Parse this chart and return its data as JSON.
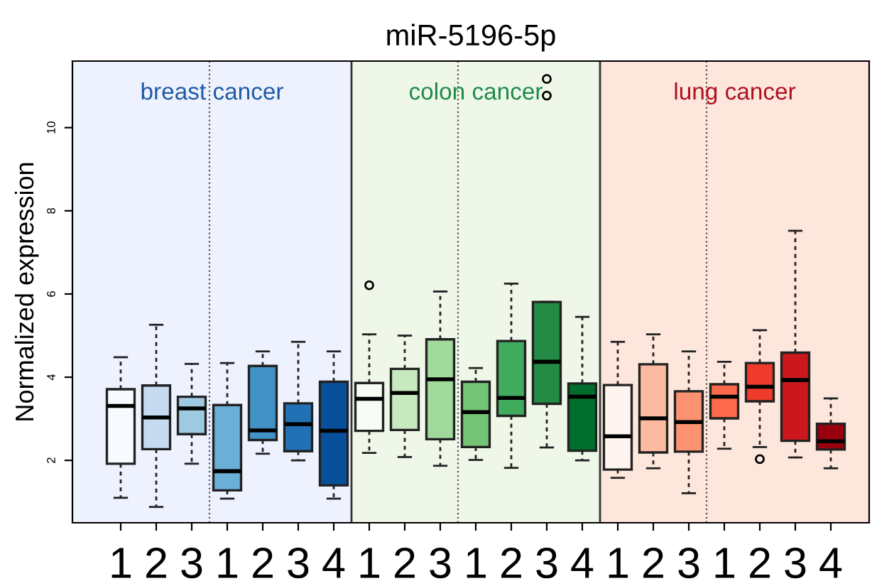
{
  "chart_data": {
    "type": "box",
    "title": "miR-5196-5p",
    "ylabel": "Normalized expression",
    "categories": [
      "1",
      "2",
      "3",
      "1",
      "2",
      "3",
      "4",
      "1",
      "2",
      "3",
      "1",
      "2",
      "3",
      "4",
      "1",
      "2",
      "3",
      "1",
      "2",
      "3",
      "4"
    ],
    "ylim": [
      0.5,
      11.6
    ],
    "yticks": [
      2,
      4,
      6,
      8,
      10
    ],
    "colors": [
      "#f7fbff",
      "#c6dbef",
      "#9ecae1",
      "#6baed6",
      "#4292c6",
      "#2171b5",
      "#08509c",
      "#f7fcf5",
      "#c7e9c0",
      "#a1d99b",
      "#74c476",
      "#41ab5d",
      "#238b45",
      "#006d2c",
      "#fff5f0",
      "#fcbba1",
      "#fc9272",
      "#fb6a4a",
      "#ef3b2c",
      "#cb181d",
      "#99000d"
    ],
    "boxes": [
      {
        "low": 1.1,
        "q1": 1.92,
        "median": 3.31,
        "q3": 3.71,
        "high": 4.48
      },
      {
        "low": 0.88,
        "q1": 2.27,
        "median": 3.03,
        "q3": 3.8,
        "high": 5.26
      },
      {
        "low": 1.92,
        "q1": 2.63,
        "median": 3.25,
        "q3": 3.53,
        "high": 4.32
      },
      {
        "low": 1.08,
        "q1": 1.28,
        "median": 1.74,
        "q3": 3.33,
        "high": 4.34
      },
      {
        "low": 2.16,
        "q1": 2.49,
        "median": 2.72,
        "q3": 4.27,
        "high": 4.62
      },
      {
        "low": 2.0,
        "q1": 2.22,
        "median": 2.87,
        "q3": 3.37,
        "high": 4.85
      },
      {
        "low": 1.08,
        "q1": 1.4,
        "median": 2.71,
        "q3": 3.89,
        "high": 4.62
      },
      {
        "low": 2.18,
        "q1": 2.71,
        "median": 3.48,
        "q3": 3.86,
        "high": 5.03,
        "outliers": [
          6.21
        ]
      },
      {
        "low": 2.08,
        "q1": 2.73,
        "median": 3.62,
        "q3": 4.2,
        "high": 5.0
      },
      {
        "low": 1.87,
        "q1": 2.51,
        "median": 3.95,
        "q3": 4.91,
        "high": 6.06
      },
      {
        "low": 2.01,
        "q1": 2.32,
        "median": 3.16,
        "q3": 3.89,
        "high": 4.22
      },
      {
        "low": 1.82,
        "q1": 3.07,
        "median": 3.5,
        "q3": 4.87,
        "high": 6.25
      },
      {
        "low": 2.31,
        "q1": 3.36,
        "median": 4.37,
        "q3": 5.81,
        "high": 5.81,
        "outliers": [
          10.77,
          11.17
        ]
      },
      {
        "low": 2.0,
        "q1": 2.23,
        "median": 3.53,
        "q3": 3.85,
        "high": 5.45
      },
      {
        "low": 1.58,
        "q1": 1.78,
        "median": 2.58,
        "q3": 3.81,
        "high": 4.85
      },
      {
        "low": 1.81,
        "q1": 2.19,
        "median": 3.01,
        "q3": 4.31,
        "high": 5.03
      },
      {
        "low": 1.21,
        "q1": 2.21,
        "median": 2.92,
        "q3": 3.66,
        "high": 4.62
      },
      {
        "low": 2.28,
        "q1": 3.01,
        "median": 3.53,
        "q3": 3.83,
        "high": 4.37
      },
      {
        "low": 2.32,
        "q1": 3.42,
        "median": 3.77,
        "q3": 4.34,
        "high": 5.13,
        "outliers": [
          2.03
        ]
      },
      {
        "low": 2.07,
        "q1": 2.47,
        "median": 3.93,
        "q3": 4.59,
        "high": 7.52
      },
      {
        "low": 1.81,
        "q1": 2.26,
        "median": 2.46,
        "q3": 2.88,
        "high": 3.49
      }
    ],
    "annotations": [
      "breast cancer",
      "colon cancer",
      "lung cancer"
    ],
    "grid": false
  }
}
